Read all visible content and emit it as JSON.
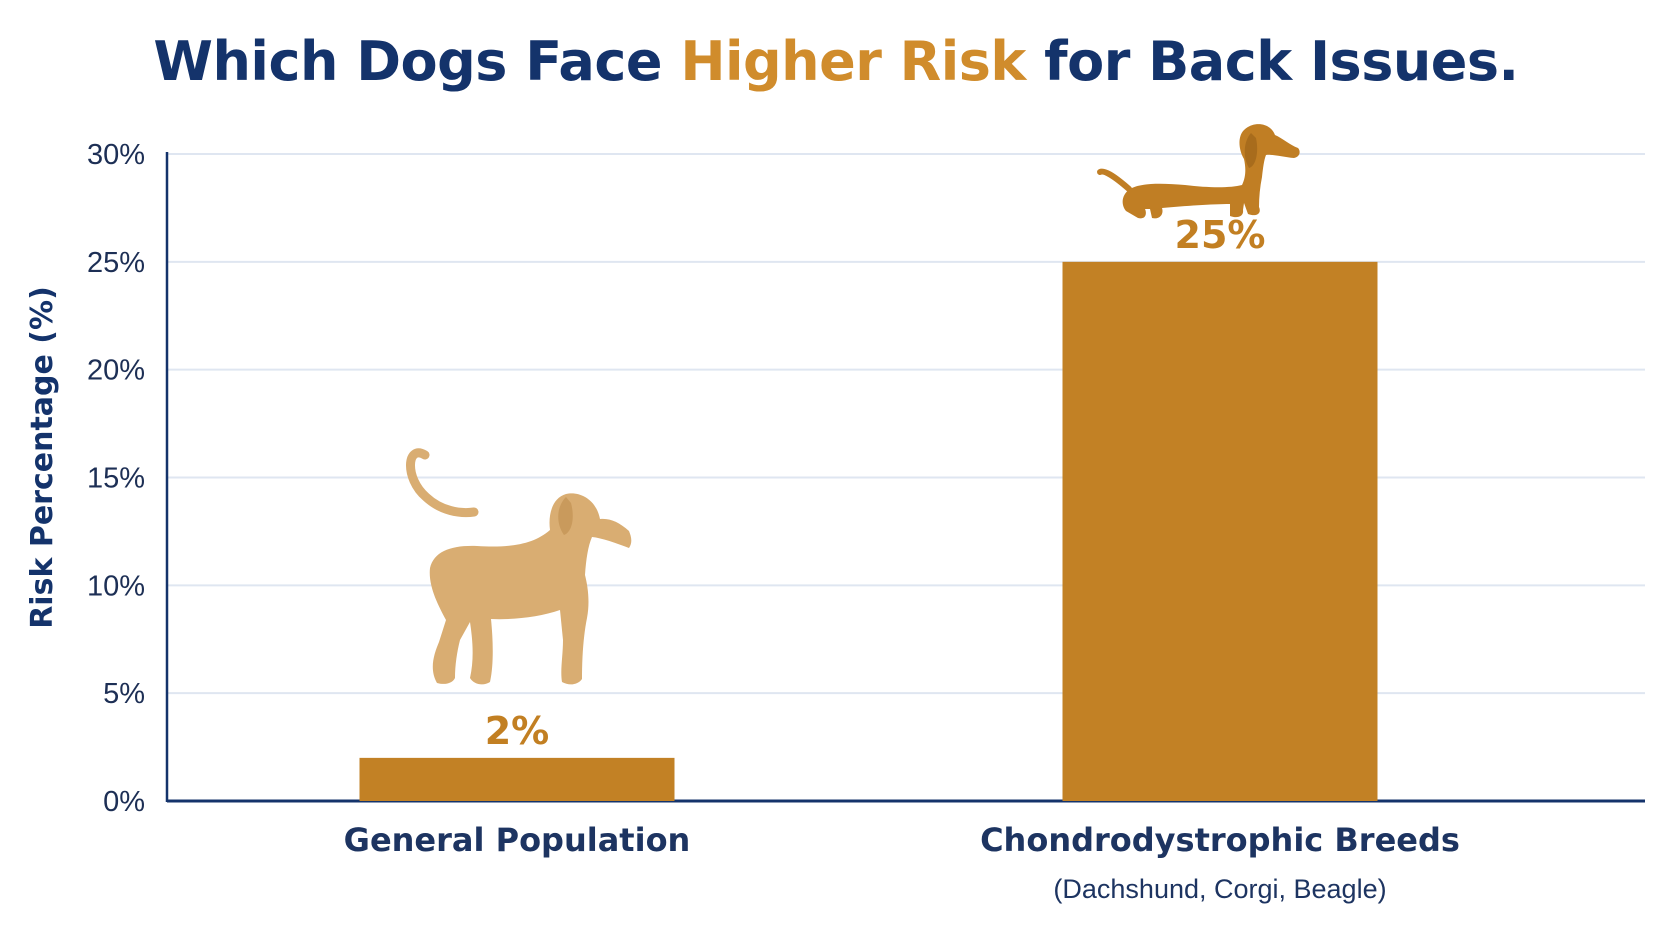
{
  "title": {
    "part1": "Which Dogs Face ",
    "highlight": "Higher Risk",
    "part2": " for Back Issues."
  },
  "colors": {
    "title_dark": "#14336b",
    "title_accent": "#d08c2c",
    "bar": "#c28125",
    "label_accent": "#c27f22",
    "dog_light": "#d9ad72",
    "dog_dark": "#c07e24",
    "axis": "#14336b",
    "grid": "#dfe6f1"
  },
  "icons": [
    "standing-dog-icon",
    "dachshund-icon"
  ],
  "chart_data": {
    "type": "bar",
    "title": "Which Dogs Face Higher Risk for Back Issues.",
    "ylabel": "Risk Percentage (%)",
    "xlabel": "",
    "categories": [
      "General Population",
      "Chondrodystrophic Breeds"
    ],
    "category_sublabels": [
      "",
      "(Dachshund, Corgi, Beagle)"
    ],
    "values": [
      2,
      25
    ],
    "value_labels": [
      "2%",
      "25%"
    ],
    "ylim": [
      0,
      30
    ],
    "yticks": [
      0,
      5,
      10,
      15,
      20,
      25,
      30
    ],
    "ytick_labels": [
      "0%",
      "5%",
      "10%",
      "15%",
      "20%",
      "25%",
      "30%"
    ],
    "grid": true,
    "legend": "none"
  }
}
